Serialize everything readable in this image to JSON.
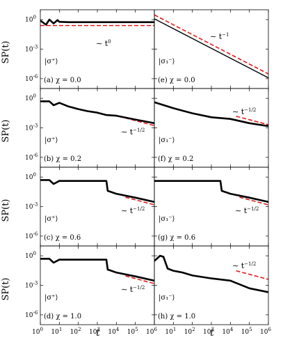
{
  "chart_data": {
    "type": "line",
    "x_axis": {
      "label": "t",
      "scale": "log",
      "xlim": [
        1,
        1000000
      ],
      "tick_values": [
        1,
        10,
        100,
        1000,
        10000,
        100000,
        1000000
      ],
      "tick_labels": [
        "10",
        "10",
        "10",
        "10",
        "10",
        "10",
        "10"
      ],
      "tick_exponents": [
        "0",
        "1",
        "2",
        "3",
        "4",
        "5",
        "6"
      ]
    },
    "y_axis": {
      "label": "SP(t)",
      "scale": "log",
      "ylim": [
        1e-07,
        10
      ],
      "tick_values": [
        1,
        0.001,
        1e-06
      ],
      "tick_labels": [
        "10",
        "10",
        "10"
      ],
      "tick_exponents": [
        "0",
        "-3",
        "-6"
      ]
    },
    "fit_line_color": "#e41a1c",
    "data_line_color": "#000000",
    "panels": [
      {
        "id": "a",
        "column": 0,
        "row": 0,
        "panel_label": "(a)",
        "state": "|σ⁺⟩",
        "chi": "χ = 0.0",
        "fit": {
          "label_prefix": "∼ t",
          "label_exponent": "0",
          "x": [
            1,
            1000000
          ],
          "y": [
            0.25,
            0.25
          ]
        },
        "series": [
          {
            "x": [
              1,
              2,
              3,
              5,
              8,
              10,
              30,
              100,
              1000,
              10000,
              100000,
              1000000
            ],
            "y": [
              0.8,
              0.3,
              1.0,
              0.4,
              0.9,
              0.6,
              0.55,
              0.55,
              0.55,
              0.55,
              0.55,
              0.55
            ]
          }
        ]
      },
      {
        "id": "b",
        "column": 0,
        "row": 1,
        "panel_label": "(b)",
        "state": "|σ⁺⟩",
        "chi": "χ = 0.2",
        "fit": {
          "label_prefix": "∼ t",
          "label_exponent": "−1/2",
          "x": [
            30000,
            1000000
          ],
          "y": [
            0.01,
            0.0017
          ]
        },
        "series": [
          {
            "x": [
              1,
              3,
              5,
              10,
              30,
              100,
              300,
              1000,
              3000,
              10000,
              100000,
              1000000
            ],
            "y": [
              0.5,
              0.5,
              0.2,
              0.35,
              0.15,
              0.08,
              0.05,
              0.035,
              0.02,
              0.017,
              0.007,
              0.003
            ]
          }
        ]
      },
      {
        "id": "c",
        "column": 0,
        "row": 2,
        "panel_label": "(c)",
        "state": "|σ⁺⟩",
        "chi": "χ = 0.6",
        "fit": {
          "label_prefix": "∼ t",
          "label_exponent": "−1/2",
          "x": [
            30000,
            1000000
          ],
          "y": [
            0.009,
            0.0015
          ]
        },
        "series": [
          {
            "x": [
              1,
              3,
              5,
              10,
              100,
              1000,
              3000,
              3500,
              10000,
              100000,
              1000000
            ],
            "y": [
              0.5,
              0.5,
              0.2,
              0.4,
              0.4,
              0.4,
              0.4,
              0.04,
              0.02,
              0.008,
              0.003
            ]
          }
        ]
      },
      {
        "id": "d",
        "column": 0,
        "row": 3,
        "panel_label": "(d)",
        "state": "|σ⁺⟩",
        "chi": "χ = 1.0",
        "fit": {
          "label_prefix": "∼ t",
          "label_exponent": "−1/2",
          "x": [
            30000,
            1000000
          ],
          "y": [
            0.009,
            0.0015
          ]
        },
        "series": [
          {
            "x": [
              1,
              3,
              5,
              10,
              100,
              1000,
              3000,
              3500,
              10000,
              100000,
              1000000
            ],
            "y": [
              0.5,
              0.5,
              0.2,
              0.4,
              0.4,
              0.4,
              0.4,
              0.04,
              0.02,
              0.008,
              0.003
            ]
          }
        ]
      },
      {
        "id": "e",
        "column": 1,
        "row": 0,
        "panel_label": "(e)",
        "state": "|σ₁⁻⟩",
        "chi": "χ = 0.0",
        "fit": {
          "label_prefix": "∼ t",
          "label_exponent": "−1",
          "x": [
            1,
            1000000
          ],
          "y": [
            3,
            3e-06
          ]
        },
        "series": [
          {
            "x": [
              1,
              10,
              100,
              1000,
              10000,
              100000,
              1000000
            ],
            "y": [
              1.2,
              0.12,
              0.012,
              0.0012,
              0.00012,
              1.2e-05,
              1.2e-06
            ]
          }
        ]
      },
      {
        "id": "f",
        "column": 1,
        "row": 1,
        "panel_label": "(f)",
        "state": "|σ₁⁻⟩",
        "chi": "χ = 0.2",
        "fit": {
          "label_prefix": "∼ t",
          "label_exponent": "−1/2",
          "x": [
            20000,
            1000000
          ],
          "y": [
            0.015,
            0.0021
          ]
        },
        "series": [
          {
            "x": [
              1,
              10,
              100,
              1000,
              10000,
              100000,
              1000000
            ],
            "y": [
              0.4,
              0.1,
              0.03,
              0.012,
              0.008,
              0.003,
              0.0015
            ]
          }
        ]
      },
      {
        "id": "g",
        "column": 1,
        "row": 2,
        "panel_label": "(g)",
        "state": "|σ₁⁻⟩",
        "chi": "χ = 0.6",
        "fit": {
          "label_prefix": "∼ t",
          "label_exponent": "−1/2",
          "x": [
            30000,
            1000000
          ],
          "y": [
            0.009,
            0.0015
          ]
        },
        "series": [
          {
            "x": [
              1,
              10,
              100,
              1000,
              3000,
              3500,
              10000,
              100000,
              1000000
            ],
            "y": [
              0.4,
              0.4,
              0.4,
              0.4,
              0.4,
              0.04,
              0.02,
              0.008,
              0.003
            ]
          }
        ]
      },
      {
        "id": "h",
        "column": 1,
        "row": 3,
        "panel_label": "(h)",
        "state": "|σ₁⁻⟩",
        "chi": "χ = 1.0",
        "fit": {
          "label_prefix": "∼ t",
          "label_exponent": "−1/2",
          "x": [
            20000,
            1000000
          ],
          "y": [
            0.03,
            0.004
          ]
        },
        "series": [
          {
            "x": [
              1,
              2,
              3,
              5,
              10,
              30,
              100,
              1000,
              10000,
              100000,
              1000000
            ],
            "y": [
              0.3,
              1.0,
              0.8,
              0.05,
              0.03,
              0.02,
              0.01,
              0.005,
              0.003,
              0.0005,
              0.0002
            ]
          }
        ]
      }
    ]
  }
}
